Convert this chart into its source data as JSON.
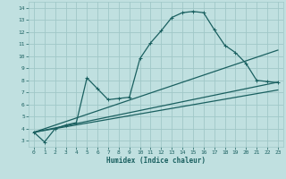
{
  "xlabel": "Humidex (Indice chaleur)",
  "bg_color": "#c0e0e0",
  "grid_color": "#a0c8c8",
  "line_color": "#1a6060",
  "xlim": [
    -0.5,
    23.5
  ],
  "ylim": [
    2.5,
    14.5
  ],
  "xticks": [
    0,
    1,
    2,
    3,
    4,
    5,
    6,
    7,
    8,
    9,
    10,
    11,
    12,
    13,
    14,
    15,
    16,
    17,
    18,
    19,
    20,
    21,
    22,
    23
  ],
  "yticks": [
    3,
    4,
    5,
    6,
    7,
    8,
    9,
    10,
    11,
    12,
    13,
    14
  ],
  "line1_x": [
    0,
    1,
    2,
    3,
    4,
    5,
    6,
    7,
    8,
    9,
    10,
    11,
    12,
    13,
    14,
    15,
    16,
    17,
    18,
    19,
    20,
    21,
    22,
    23
  ],
  "line1_y": [
    3.7,
    2.9,
    4.0,
    4.3,
    4.5,
    8.2,
    7.3,
    6.4,
    6.5,
    6.6,
    9.8,
    11.1,
    12.1,
    13.2,
    13.6,
    13.7,
    13.6,
    12.2,
    10.9,
    10.3,
    9.4,
    8.0,
    7.9,
    7.8
  ],
  "line2_x": [
    0,
    23
  ],
  "line2_y": [
    3.7,
    10.5
  ],
  "line3_x": [
    0,
    23
  ],
  "line3_y": [
    3.7,
    7.85
  ],
  "line4_x": [
    0,
    23
  ],
  "line4_y": [
    3.7,
    7.2
  ]
}
